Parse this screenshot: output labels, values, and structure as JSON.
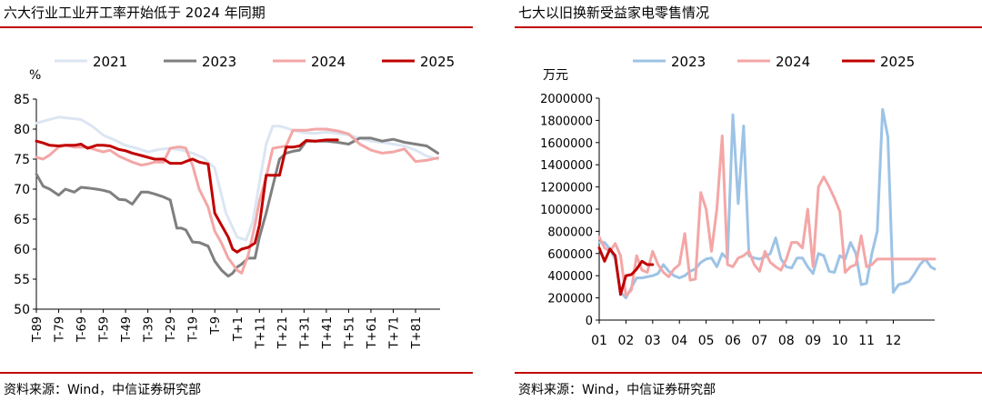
{
  "left": {
    "title": "六大行业工业开工率开始低于 2024 年同期",
    "source": "资料来源：Wind，中信证券研究部",
    "chart_data": {
      "type": "line",
      "title": "六大行业工业开工率开始低于 2024 年同期",
      "ylabel": "%",
      "ylim": [
        50,
        85
      ],
      "yticks": [
        "50",
        "55",
        "60",
        "65",
        "70",
        "75",
        "80",
        "85"
      ],
      "xticks": [
        "T-89",
        "T-79",
        "T-69",
        "T-59",
        "T-49",
        "T-39",
        "T-29",
        "T-19",
        "T-9",
        "T+1",
        "T+11",
        "T+21",
        "T+31",
        "T+41",
        "T+51",
        "T+61",
        "T+71",
        "T+81"
      ],
      "xlim": [
        -89,
        92
      ],
      "legend_position": "top",
      "series": [
        {
          "name": "2021",
          "color": "#dce6f2",
          "width": 3,
          "x": [
            -89,
            -84,
            -79,
            -74,
            -69,
            -64,
            -59,
            -54,
            -49,
            -44,
            -39,
            -34,
            -29,
            -24,
            -19,
            -14,
            -9,
            -4,
            1,
            5,
            8,
            11,
            14,
            17,
            20,
            23,
            26,
            31,
            36,
            41,
            46,
            51,
            56,
            61,
            66,
            71,
            76,
            81,
            86,
            91
          ],
          "y": [
            81,
            81.5,
            82,
            81.8,
            81.6,
            80.5,
            79,
            78.2,
            77.3,
            76.8,
            76.2,
            76.6,
            76.8,
            76.5,
            76,
            75.2,
            73.5,
            66,
            62,
            61.5,
            64.5,
            71,
            77.5,
            80.5,
            80.5,
            80.2,
            79.8,
            79.4,
            79.3,
            79.5,
            79.3,
            79,
            78.5,
            78,
            77.8,
            77.5,
            77.2,
            76.5,
            75.5,
            75
          ]
        },
        {
          "name": "2023",
          "color": "#7f7f7f",
          "width": 3,
          "x": [
            -89,
            -86,
            -83,
            -79,
            -76,
            -72,
            -69,
            -66,
            -62,
            -59,
            -56,
            -52,
            -49,
            -46,
            -42,
            -39,
            -36,
            -32,
            -29,
            -26,
            -24,
            -22,
            -19,
            -16,
            -12,
            -9,
            -6,
            -3,
            -1,
            1,
            3,
            6,
            9,
            11,
            14,
            17,
            20,
            23,
            26,
            29,
            32,
            36,
            41,
            46,
            51,
            56,
            61,
            66,
            71,
            76,
            81,
            86,
            91
          ],
          "y": [
            72.5,
            70.5,
            70,
            69,
            70,
            69.5,
            70.3,
            70.2,
            70,
            69.8,
            69.5,
            68.3,
            68.2,
            67.5,
            69.5,
            69.5,
            69.2,
            68.7,
            68.2,
            63.5,
            63.5,
            63.2,
            61.2,
            61.1,
            60.5,
            58,
            56.5,
            55.5,
            56,
            57,
            57.5,
            58.5,
            58.5,
            62,
            66,
            70.5,
            75,
            76,
            76.3,
            76.5,
            78,
            78,
            78,
            77.8,
            77.5,
            78.5,
            78.5,
            78,
            78.3,
            77.8,
            77.5,
            77.2,
            76
          ]
        },
        {
          "name": "2024",
          "color": "#f4a6a6",
          "width": 3,
          "x": [
            -89,
            -86,
            -83,
            -79,
            -76,
            -72,
            -69,
            -66,
            -62,
            -59,
            -56,
            -52,
            -49,
            -46,
            -42,
            -39,
            -36,
            -32,
            -29,
            -26,
            -24,
            -22,
            -19,
            -16,
            -12,
            -9,
            -6,
            -3,
            -1,
            1,
            3,
            6,
            9,
            11,
            14,
            17,
            20,
            23,
            26,
            29,
            32,
            36,
            41,
            46,
            51,
            56,
            61,
            66,
            71,
            76,
            81,
            86,
            91
          ],
          "y": [
            75.3,
            75,
            75.7,
            77,
            77.3,
            77,
            77,
            77,
            76.5,
            76.2,
            76.5,
            75.5,
            75,
            74.5,
            74,
            74.2,
            74.5,
            74.5,
            76.8,
            77,
            77,
            76.8,
            74,
            70,
            67,
            63,
            61,
            58.5,
            57.5,
            56.5,
            56,
            59,
            64,
            68,
            72,
            76.8,
            77,
            77.2,
            79.8,
            79.8,
            79.8,
            80,
            80,
            79.7,
            79.2,
            77.5,
            76.5,
            76,
            76.2,
            76.7,
            74.6,
            74.8,
            75.2
          ]
        },
        {
          "name": "2025",
          "color": "#c00000",
          "width": 3,
          "x": [
            -89,
            -86,
            -83,
            -79,
            -76,
            -72,
            -69,
            -66,
            -62,
            -59,
            -56,
            -52,
            -49,
            -46,
            -42,
            -39,
            -36,
            -32,
            -29,
            -26,
            -24,
            -22,
            -19,
            -16,
            -12,
            -9,
            -6,
            -3,
            -1,
            1,
            3,
            6,
            9,
            11,
            14,
            17,
            20,
            23,
            26,
            29,
            32,
            36,
            41,
            46
          ],
          "y": [
            78,
            77.7,
            77.3,
            77.2,
            77.3,
            77.3,
            77.5,
            76.8,
            77.3,
            77.3,
            77.2,
            76.6,
            76.4,
            76,
            75.6,
            75.3,
            75,
            75,
            74.3,
            74.3,
            74.3,
            74.6,
            75,
            74.5,
            74.2,
            66,
            64,
            62,
            60,
            59.5,
            60,
            60.3,
            61,
            64,
            72.3,
            72.3,
            72.3,
            77,
            77,
            77.2,
            78.1,
            78,
            78.2,
            78.2
          ]
        }
      ]
    }
  },
  "right": {
    "title": "七大以旧换新受益家电零售情况",
    "source": "资料来源：Wind，中信证券研究部",
    "chart_data": {
      "type": "line",
      "title": "七大以旧换新受益家电零售情况",
      "ylabel": "万元",
      "ylim": [
        0,
        2000000
      ],
      "yticks": [
        "0",
        "200000",
        "400000",
        "600000",
        "800000",
        "1000000",
        "1200000",
        "1400000",
        "1600000",
        "1800000",
        "2000000"
      ],
      "xticks": [
        "01",
        "02",
        "03",
        "04",
        "05",
        "06",
        "07",
        "08",
        "09",
        "10",
        "11",
        "12"
      ],
      "xlim": [
        0,
        12.55
      ],
      "legend_position": "top",
      "series": [
        {
          "name": "2023",
          "color": "#9dc3e6",
          "width": 3,
          "x": [
            0,
            0.2,
            0.4,
            0.6,
            0.8,
            1,
            1.2,
            1.4,
            1.6,
            1.8,
            2,
            2.2,
            2.4,
            2.6,
            2.8,
            3,
            3.2,
            3.4,
            3.6,
            3.8,
            4,
            4.2,
            4.4,
            4.6,
            4.8,
            5,
            5.2,
            5.4,
            5.6,
            5.8,
            6,
            6.2,
            6.4,
            6.6,
            6.8,
            7,
            7.2,
            7.4,
            7.6,
            7.8,
            8,
            8.2,
            8.4,
            8.6,
            8.8,
            9,
            9.2,
            9.4,
            9.6,
            9.8,
            10,
            10.2,
            10.4,
            10.6,
            10.8,
            11,
            11.2,
            11.4,
            11.6,
            11.8,
            12,
            12.2,
            12.4,
            12.55
          ],
          "y": [
            700000,
            700000,
            640000,
            550000,
            250000,
            200000,
            290000,
            380000,
            380000,
            390000,
            400000,
            420000,
            500000,
            440000,
            400000,
            380000,
            400000,
            440000,
            460000,
            520000,
            550000,
            560000,
            480000,
            600000,
            550000,
            1850000,
            1050000,
            1750000,
            580000,
            560000,
            550000,
            570000,
            600000,
            740000,
            550000,
            480000,
            470000,
            560000,
            560000,
            480000,
            420000,
            600000,
            580000,
            440000,
            430000,
            580000,
            550000,
            700000,
            600000,
            320000,
            330000,
            600000,
            800000,
            1900000,
            1650000,
            250000,
            320000,
            330000,
            350000,
            420000,
            500000,
            550000,
            480000,
            460000
          ]
        },
        {
          "name": "2024",
          "color": "#f4a6a6",
          "width": 3,
          "x": [
            0,
            0.2,
            0.4,
            0.6,
            0.8,
            1,
            1.2,
            1.4,
            1.6,
            1.8,
            2,
            2.2,
            2.4,
            2.6,
            2.8,
            3,
            3.2,
            3.4,
            3.6,
            3.8,
            4,
            4.2,
            4.4,
            4.6,
            4.8,
            5,
            5.2,
            5.4,
            5.6,
            5.8,
            6,
            6.2,
            6.4,
            6.6,
            6.8,
            7,
            7.2,
            7.4,
            7.6,
            7.8,
            8,
            8.2,
            8.4,
            8.6,
            8.8,
            9,
            9.2,
            9.4,
            9.6,
            9.8,
            10,
            10.2,
            10.4,
            10.6,
            10.8,
            11,
            11.2,
            11.4,
            11.6,
            11.8,
            12,
            12.2,
            12.4,
            12.55
          ],
          "y": [
            750000,
            650000,
            620000,
            690000,
            580000,
            220000,
            270000,
            580000,
            450000,
            430000,
            620000,
            500000,
            430000,
            390000,
            460000,
            500000,
            780000,
            360000,
            370000,
            1150000,
            1000000,
            620000,
            1000000,
            1660000,
            500000,
            480000,
            560000,
            580000,
            620000,
            500000,
            440000,
            620000,
            520000,
            480000,
            450000,
            550000,
            700000,
            700000,
            650000,
            1000000,
            480000,
            1200000,
            1290000,
            1200000,
            1100000,
            980000,
            430000,
            480000,
            500000,
            760000,
            480000,
            500000,
            550000,
            550000,
            550000,
            550000,
            550000,
            550000,
            550000,
            550000,
            550000,
            550000,
            550000,
            550000
          ]
        },
        {
          "name": "2025",
          "color": "#c00000",
          "width": 3,
          "x": [
            0,
            0.2,
            0.4,
            0.6,
            0.8,
            1,
            1.2,
            1.4,
            1.6,
            1.8,
            2
          ],
          "y": [
            650000,
            530000,
            640000,
            580000,
            230000,
            400000,
            410000,
            460000,
            530000,
            500000,
            500000
          ]
        }
      ]
    }
  }
}
